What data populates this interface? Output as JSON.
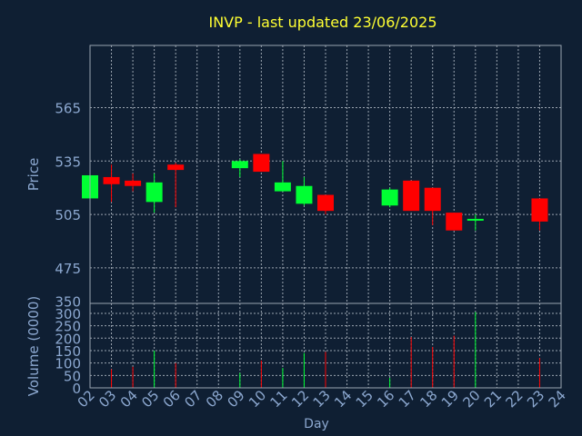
{
  "chart_data": {
    "type": "candlestick",
    "title": "INVP - last updated 23/06/2025",
    "xlabel": "Day",
    "ylabel_price": "Price",
    "ylabel_volume": "Volume (0000)",
    "x_ticks": [
      "02",
      "03",
      "04",
      "05",
      "06",
      "07",
      "08",
      "09",
      "10",
      "11",
      "12",
      "13",
      "14",
      "15",
      "16",
      "17",
      "18",
      "19",
      "20",
      "21",
      "22",
      "23",
      "24"
    ],
    "price_ylim": [
      455,
      600
    ],
    "price_ticks": [
      475,
      505,
      535,
      565
    ],
    "volume_ylim": [
      0,
      340
    ],
    "volume_ticks": [
      0,
      50,
      100,
      150,
      200,
      250,
      300,
      350
    ],
    "grid": true,
    "candles": [
      {
        "day": "02",
        "open": 514,
        "high": 527,
        "low": 514,
        "close": 527
      },
      {
        "day": "03",
        "open": 526,
        "high": 533,
        "low": 512,
        "close": 522
      },
      {
        "day": "04",
        "open": 524,
        "high": 528,
        "low": 518,
        "close": 521
      },
      {
        "day": "05",
        "open": 512,
        "high": 528,
        "low": 506,
        "close": 523
      },
      {
        "day": "06",
        "open": 533,
        "high": 534,
        "low": 509,
        "close": 530
      },
      {
        "day": "09",
        "open": 531,
        "high": 536,
        "low": 526,
        "close": 535
      },
      {
        "day": "10",
        "open": 539,
        "high": 539,
        "low": 529,
        "close": 529
      },
      {
        "day": "11",
        "open": 518,
        "high": 535,
        "low": 518,
        "close": 523
      },
      {
        "day": "12",
        "open": 511,
        "high": 526,
        "low": 510,
        "close": 521
      },
      {
        "day": "13",
        "open": 516,
        "high": 516,
        "low": 505,
        "close": 507
      },
      {
        "day": "16",
        "open": 510,
        "high": 520,
        "low": 509,
        "close": 519
      },
      {
        "day": "17",
        "open": 524,
        "high": 524,
        "low": 507,
        "close": 507
      },
      {
        "day": "18",
        "open": 520,
        "high": 520,
        "low": 499,
        "close": 507
      },
      {
        "day": "19",
        "open": 506,
        "high": 506,
        "low": 496,
        "close": 496
      },
      {
        "day": "20",
        "open": 501,
        "high": 505,
        "low": 496,
        "close": 502
      },
      {
        "day": "23",
        "open": 514,
        "high": 514,
        "low": 496,
        "close": 501
      }
    ],
    "volume": [
      {
        "day": "03",
        "value": 75
      },
      {
        "day": "04",
        "value": 85
      },
      {
        "day": "05",
        "value": 150
      },
      {
        "day": "06",
        "value": 100
      },
      {
        "day": "09",
        "value": 60
      },
      {
        "day": "10",
        "value": 110
      },
      {
        "day": "11",
        "value": 80
      },
      {
        "day": "12",
        "value": 140
      },
      {
        "day": "13",
        "value": 145
      },
      {
        "day": "16",
        "value": 40
      },
      {
        "day": "17",
        "value": 205
      },
      {
        "day": "18",
        "value": 165
      },
      {
        "day": "19",
        "value": 210
      },
      {
        "day": "20",
        "value": 305
      },
      {
        "day": "23",
        "value": 120
      }
    ]
  },
  "colors": {
    "background": "#0f1f33",
    "title": "#ffff33",
    "axis_text": "#8ca8d0",
    "grid": "#9aa4b0",
    "up": "#00ff33",
    "down": "#ff0000",
    "frame": "#9aa4b0"
  }
}
